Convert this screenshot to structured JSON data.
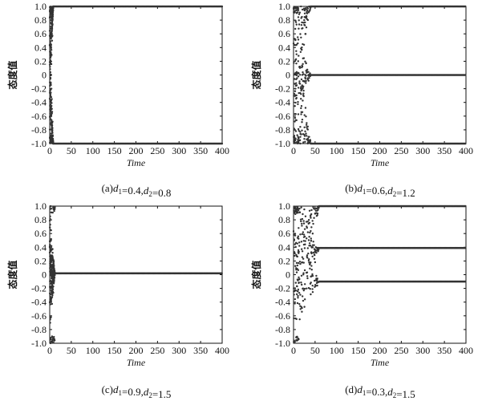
{
  "chart_data": [
    {
      "type": "scatter",
      "xlabel": "Time",
      "ylabel": "态度值",
      "xlim": [
        0,
        400
      ],
      "ylim": [
        -1.0,
        1.0
      ],
      "xticks": [
        "0",
        "50",
        "100",
        "150",
        "200",
        "250",
        "300",
        "350",
        "400"
      ],
      "yticks": [
        "1.0",
        "0.8",
        "0.6",
        "0.4",
        "0.2",
        "0",
        "-0.2",
        "-0.4",
        "-0.6",
        "-0.8",
        "-1.0"
      ],
      "caption": {
        "prefix": "(a)",
        "d1_label": "d",
        "d1_sub": "1",
        "d1_value": "=0.4",
        "d2_label": "d",
        "d2_sub": "2",
        "d2_value": "=0.8"
      },
      "convergence_time": 8,
      "series": [
        {
          "values_at_400": [
            1.0,
            -1.0
          ]
        }
      ]
    },
    {
      "type": "scatter",
      "xlabel": "Time",
      "ylabel": "态度值",
      "xlim": [
        0,
        400
      ],
      "ylim": [
        -1.0,
        1.0
      ],
      "xticks": [
        "0",
        "50",
        "100",
        "150",
        "200",
        "250",
        "300",
        "350",
        "400"
      ],
      "yticks": [
        "1.0",
        "0.8",
        "0.6",
        "0.4",
        "0.2",
        "0",
        "-0.2",
        "-0.4",
        "-0.6",
        "-0.8",
        "-1.0"
      ],
      "caption": {
        "prefix": "(b)",
        "d1_label": "d",
        "d1_sub": "1",
        "d1_value": "=0.6",
        "d2_label": "d",
        "d2_sub": "2",
        "d2_value": "=1.2"
      },
      "convergence_time": 40,
      "series": [
        {
          "values_at_400": [
            1.0,
            0.0,
            -1.0
          ]
        }
      ]
    },
    {
      "type": "scatter",
      "xlabel": "Time",
      "ylabel": "态度值",
      "xlim": [
        0,
        400
      ],
      "ylim": [
        -1.0,
        1.0
      ],
      "xticks": [
        "0",
        "50",
        "100",
        "150",
        "200",
        "250",
        "300",
        "350",
        "400"
      ],
      "yticks": [
        "1.0",
        "0.8",
        "0.6",
        "0.4",
        "0.2",
        "0",
        "-0.2",
        "-0.4",
        "-0.6",
        "-0.8",
        "-1.0"
      ],
      "caption": {
        "prefix": "(c)",
        "d1_label": "d",
        "d1_sub": "1",
        "d1_value": "=0.9",
        "d2_label": "d",
        "d2_sub": "2",
        "d2_value": "=1.5"
      },
      "convergence_time": 12,
      "series": [
        {
          "values_at_400": [
            0.02
          ]
        }
      ]
    },
    {
      "type": "scatter",
      "xlabel": "Time",
      "ylabel": "态度值",
      "xlim": [
        0,
        400
      ],
      "ylim": [
        -1.0,
        1.0
      ],
      "xticks": [
        "0",
        "50",
        "100",
        "150",
        "200",
        "250",
        "300",
        "350",
        "400"
      ],
      "yticks": [
        "1.0",
        "0.8",
        "0.6",
        "0.4",
        "0.2",
        "0",
        "-0.2",
        "-0.4",
        "-0.6",
        "-0.8",
        "-1.0"
      ],
      "caption": {
        "prefix": "(d)",
        "d1_label": "d",
        "d1_sub": "1",
        "d1_value": "=0.3",
        "d2_label": "d",
        "d2_sub": "2",
        "d2_value": "=1.5"
      },
      "convergence_time": 60,
      "series": [
        {
          "values_at_400": [
            1.0,
            0.39,
            -0.1
          ]
        }
      ]
    }
  ]
}
